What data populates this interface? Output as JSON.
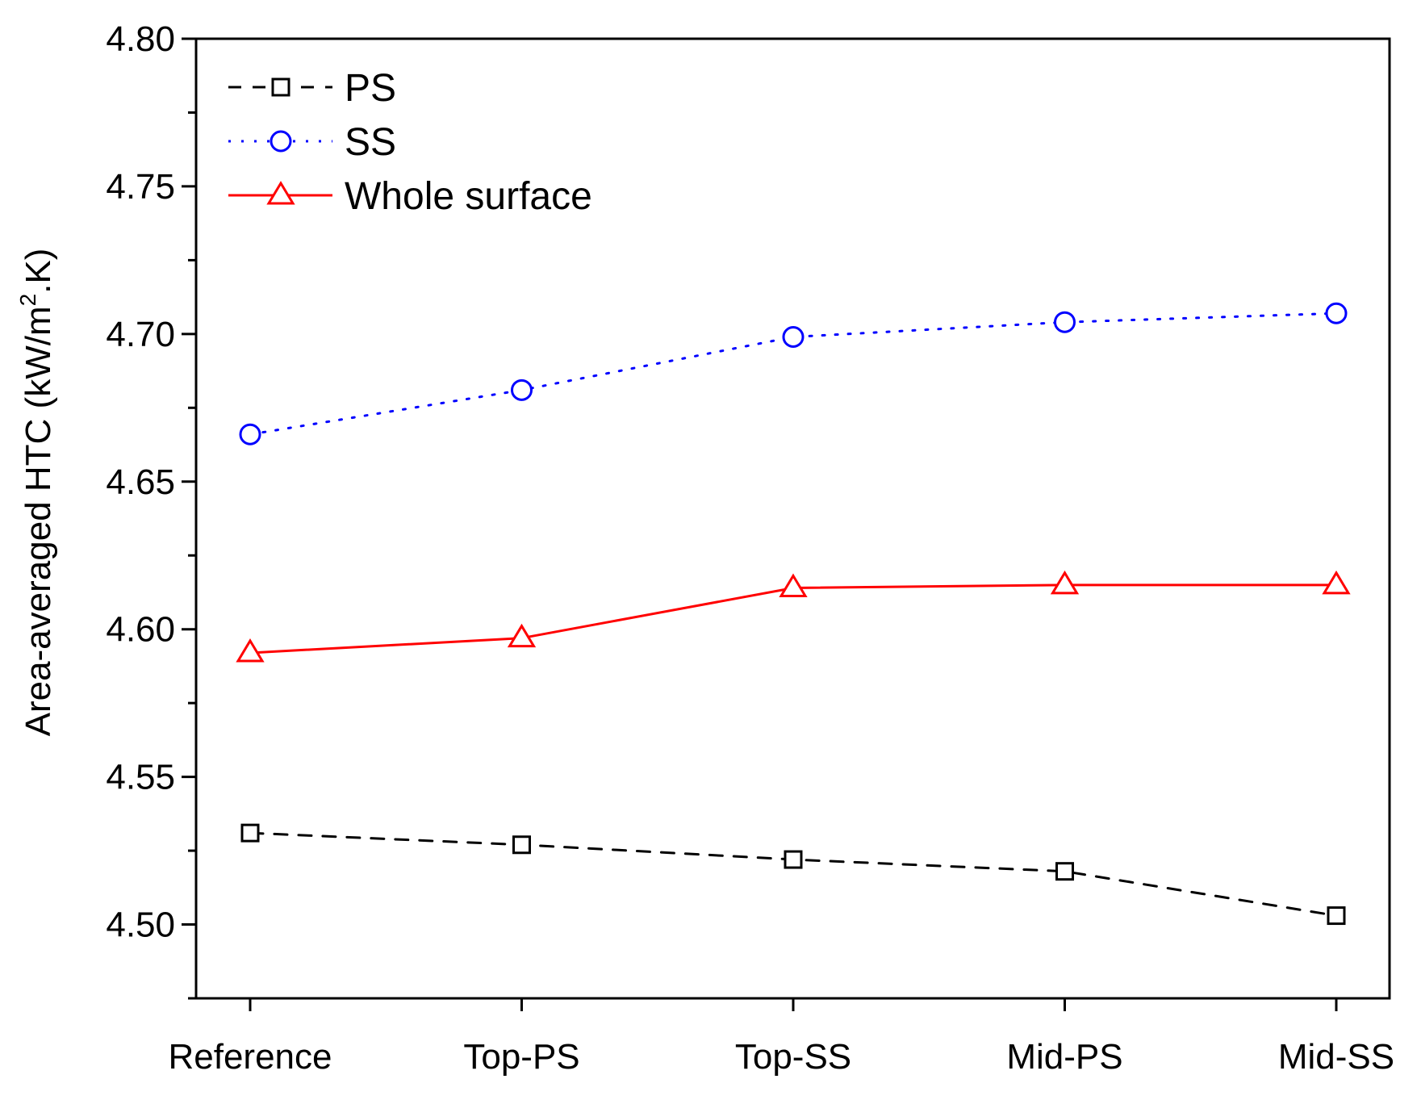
{
  "chart_data": {
    "type": "line",
    "title": "",
    "xlabel": "",
    "ylabel": {
      "main": "Area-averaged HTC (kW/m",
      "sup": "2",
      "tail": ".K)"
    },
    "categories": [
      "Reference",
      "Top-PS",
      "Top-SS",
      "Mid-PS",
      "Mid-SS"
    ],
    "ylim": [
      4.475,
      4.8
    ],
    "yticks": [
      "4.50",
      "4.55",
      "4.60",
      "4.65",
      "4.70",
      "4.75",
      "4.80"
    ],
    "grid": false,
    "legend_position": "top-left",
    "series": [
      {
        "name": "PS",
        "values": [
          4.531,
          4.527,
          4.522,
          4.518,
          4.503
        ],
        "color": "#000000",
        "line": "dashed",
        "marker": "square"
      },
      {
        "name": "SS",
        "values": [
          4.666,
          4.681,
          4.699,
          4.704,
          4.707
        ],
        "color": "#0000ff",
        "line": "dotted",
        "marker": "circle"
      },
      {
        "name": "Whole surface",
        "values": [
          4.592,
          4.597,
          4.614,
          4.615,
          4.615
        ],
        "color": "#ff0000",
        "line": "solid",
        "marker": "triangle"
      }
    ]
  }
}
